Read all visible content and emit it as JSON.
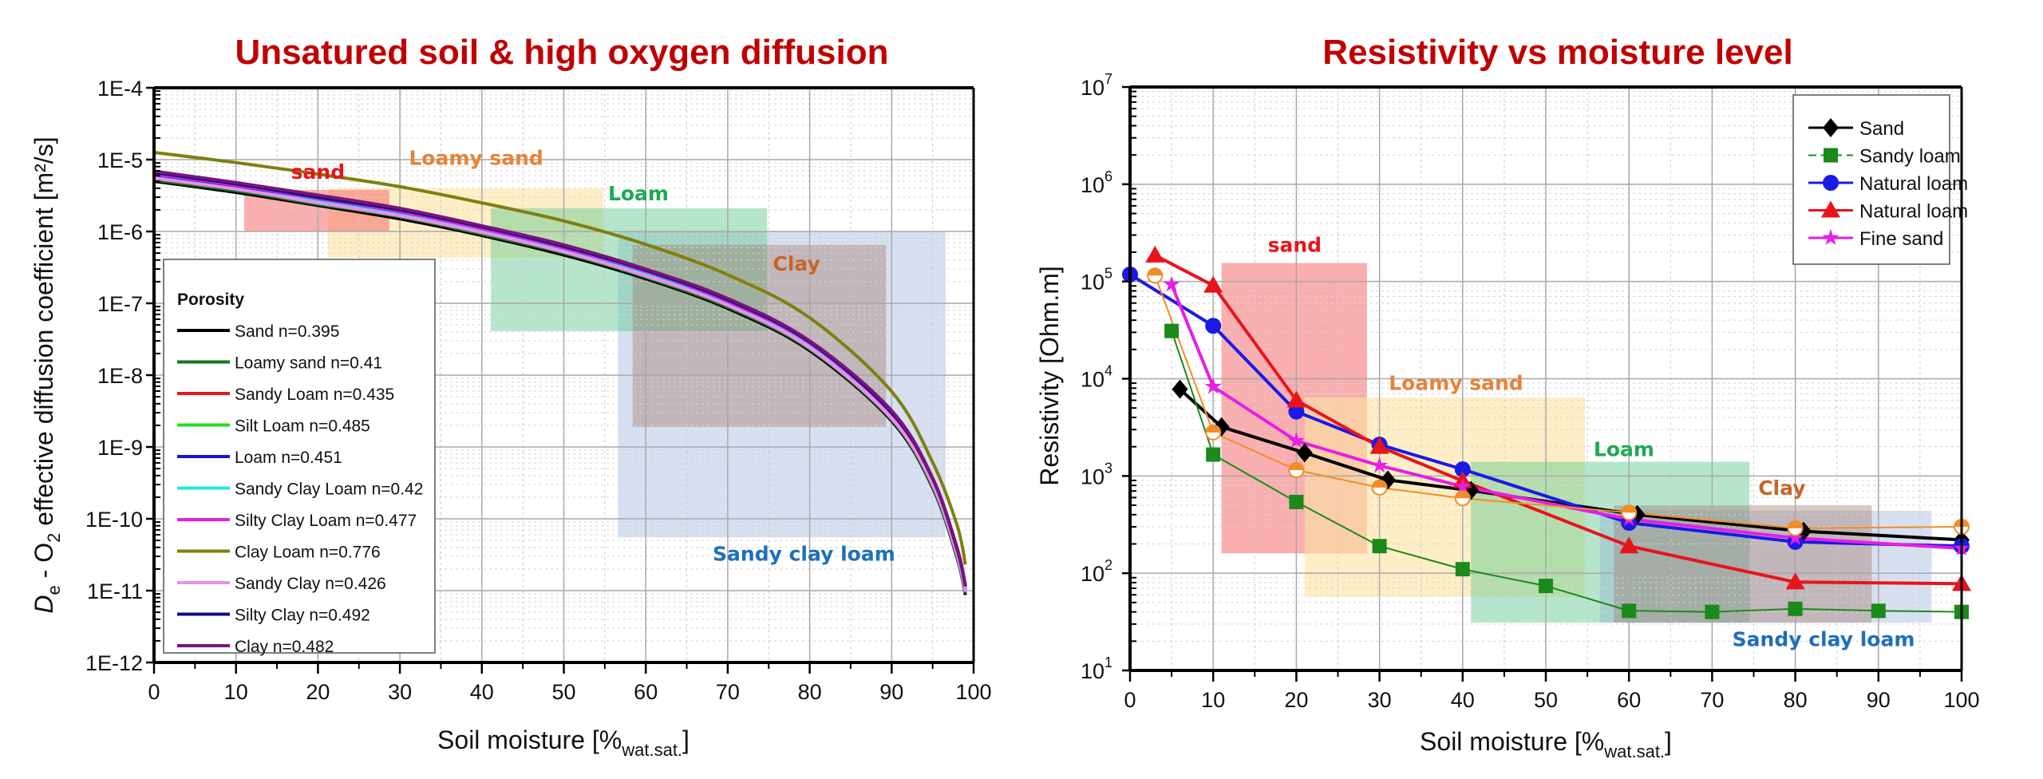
{
  "chart_data": [
    {
      "id": "left",
      "type": "line",
      "title": "Unsatured soil & high oxygen diffusion",
      "xlabel": "Soil moisture [%",
      "xlabel_sub": "wat.sat.",
      "xlabel_end": "]",
      "ylabel_main": "D",
      "ylabel_sub_e": "e",
      "ylabel_rest1": " - O",
      "ylabel_sub_2": "2",
      "ylabel_rest2": " effective diffusion coefficient [m²/s]",
      "xlim": [
        0,
        100
      ],
      "ylim": [
        1e-12,
        0.0001
      ],
      "yscale": "log",
      "grid": true,
      "xticks": [
        0,
        10,
        20,
        30,
        40,
        50,
        60,
        70,
        80,
        90,
        100
      ],
      "yticks": [
        {
          "value": 0.0001,
          "label": "1E-4"
        },
        {
          "value": 1e-05,
          "label": "1E-5"
        },
        {
          "value": 1e-06,
          "label": "1E-6"
        },
        {
          "value": 1e-07,
          "label": "1E-7"
        },
        {
          "value": 1e-08,
          "label": "1E-8"
        },
        {
          "value": 1e-09,
          "label": "1E-9"
        },
        {
          "value": 1e-10,
          "label": "1E-10"
        },
        {
          "value": 1e-11,
          "label": "1E-11"
        },
        {
          "value": 1e-12,
          "label": "1E-12"
        }
      ],
      "legend_title": "Porosity",
      "legend_position": "bottom-left",
      "x": [
        0,
        10,
        20,
        30,
        40,
        50,
        60,
        70,
        80,
        90,
        95,
        98,
        99
      ],
      "series": [
        {
          "name": "Sand n=0.395",
          "color": "#000000",
          "values": [
            5e-06,
            3.5e-06,
            2.3e-06,
            1.5e-06,
            8.8e-07,
            4.7e-07,
            2.2e-07,
            8.5e-08,
            2.2e-08,
            2.3e-09,
            2.7e-10,
            2.8e-11,
            8.7e-12
          ]
        },
        {
          "name": "Loamy sand n=0.41",
          "color": "#0f7a1a",
          "values": [
            5.2e-06,
            3.7e-06,
            2.4e-06,
            1.6e-06,
            9.2e-07,
            5e-07,
            2.3e-07,
            8.9e-08,
            2.3e-08,
            2.4e-09,
            2.8e-10,
            2.9e-11,
            9.1e-12
          ]
        },
        {
          "name": "Sandy Loam n=0.435",
          "color": "#e8141b",
          "values": [
            5.9e-06,
            4.1e-06,
            2.7e-06,
            1.8e-06,
            1e-06,
            5.5e-07,
            2.6e-07,
            9.9e-08,
            2.6e-08,
            2.7e-09,
            3.2e-10,
            3.3e-11,
            1e-11
          ]
        },
        {
          "name": "Silt Loam n=0.485",
          "color": "#22e022",
          "values": [
            5.7e-06,
            4e-06,
            2.6e-06,
            1.7e-06,
            1e-06,
            5.4e-07,
            2.5e-07,
            9.8e-08,
            2.5e-08,
            2.6e-09,
            3.1e-10,
            3.2e-11,
            1e-11
          ]
        },
        {
          "name": "Loam n=0.451",
          "color": "#1212d8",
          "values": [
            6e-06,
            4.2e-06,
            2.8e-06,
            1.8e-06,
            1.06e-06,
            5.6e-07,
            2.6e-07,
            1e-07,
            2.6e-08,
            2.8e-09,
            3.2e-10,
            3.4e-11,
            1.04e-11
          ]
        },
        {
          "name": "Sandy Clay Loam n=0.42",
          "color": "#22e6e6",
          "values": [
            5.6e-06,
            3.9e-06,
            2.6e-06,
            1.7e-06,
            9.9e-07,
            5.3e-07,
            2.5e-07,
            9.5e-08,
            2.5e-08,
            2.6e-09,
            3e-10,
            3.1e-11,
            9.7e-12
          ]
        },
        {
          "name": "Silty Clay Loam n=0.477",
          "color": "#e61ee6",
          "values": [
            6.3e-06,
            4.4e-06,
            2.9e-06,
            1.9e-06,
            1.1e-06,
            5.9e-07,
            2.8e-07,
            1.07e-07,
            2.8e-08,
            2.9e-09,
            3.4e-10,
            3.5e-11,
            1.1e-11
          ]
        },
        {
          "name": "Clay Loam n=0.776",
          "color": "#7f7f0f",
          "values": [
            1.26e-05,
            9.1e-06,
            6.3e-06,
            4.2e-06,
            2.5e-06,
            1.4e-06,
            6.6e-07,
            2.5e-07,
            6.3e-08,
            5.9e-09,
            6.1e-10,
            8e-11,
            2.3e-11
          ]
        },
        {
          "name": "Sandy Clay n=0.426",
          "color": "#f08ce8",
          "values": [
            5.5e-06,
            3.9e-06,
            2.5e-06,
            1.65e-06,
            9.7e-07,
            5.2e-07,
            2.4e-07,
            9.4e-08,
            2.4e-08,
            2.5e-09,
            3e-10,
            3.1e-11,
            9.6e-12
          ]
        },
        {
          "name": "Silty Clay n=0.492",
          "color": "#101078",
          "values": [
            6.6e-06,
            4.6e-06,
            3e-06,
            2e-06,
            1.16e-06,
            6.2e-07,
            2.9e-07,
            1.12e-07,
            2.9e-08,
            3e-09,
            3.6e-10,
            3.7e-11,
            1.15e-11
          ]
        },
        {
          "name": "Clay n=0.482",
          "color": "#7a147a",
          "values": [
            6.9e-06,
            4.8e-06,
            3.2e-06,
            2.1e-06,
            1.2e-06,
            6.5e-07,
            3e-07,
            1.17e-07,
            3e-08,
            3.2e-09,
            3.7e-10,
            3.9e-11,
            1.2e-11
          ]
        }
      ],
      "regions": [
        {
          "name": "Sandy clay loam",
          "x": [
            56.6,
            96.6
          ],
          "y": [
            5.5e-11,
            1e-06
          ],
          "fill": "#8ca5d7",
          "opacity": 0.35,
          "label_color": "#1f6fb8",
          "label_at": [
            79.3,
            3.3e-11
          ]
        },
        {
          "name": "Loamy sand",
          "x": [
            21.2,
            54.8
          ],
          "y": [
            4.3e-07,
            4e-06
          ],
          "fill": "#fbe3a0",
          "opacity": 0.6,
          "label_color": "#e8823a",
          "label_at": [
            39.3,
            1.07e-05
          ]
        },
        {
          "name": "Loam",
          "x": [
            41.1,
            74.8
          ],
          "y": [
            4.1e-08,
            2.1e-06
          ],
          "fill": "#5ac88c",
          "opacity": 0.45,
          "label_color": "#1daa55",
          "label_at": [
            59.1,
            3.4e-06
          ]
        },
        {
          "name": "Clay",
          "x": [
            58.4,
            89.3
          ],
          "y": [
            1.9e-09,
            6.5e-07
          ],
          "fill": "#a07868",
          "opacity": 0.4,
          "label_color": "#c86428",
          "label_at": [
            78.4,
            3.6e-07
          ]
        },
        {
          "name": "sand",
          "x": [
            11.0,
            28.7
          ],
          "y": [
            1e-06,
            3.8e-06
          ],
          "fill": "#f46e6e",
          "opacity": 0.55,
          "label_color": "#e8141b",
          "label_at": [
            20.0,
            6.8e-06
          ]
        }
      ]
    },
    {
      "id": "right",
      "type": "line",
      "title": "Resistivity vs moisture level",
      "xlabel": "Soil moisture [%",
      "xlabel_sub": "wat.sat.",
      "xlabel_end": "]",
      "ylabel": "Resistivity [Ohm.m]",
      "xlim": [
        0,
        100
      ],
      "ylim": [
        10,
        10000000
      ],
      "yscale": "log",
      "grid": true,
      "xticks": [
        0,
        10,
        20,
        30,
        40,
        50,
        60,
        70,
        80,
        90,
        100
      ],
      "yticks": [
        {
          "value": 10000000,
          "base": "10",
          "exp": "7"
        },
        {
          "value": 1000000,
          "base": "10",
          "exp": "6"
        },
        {
          "value": 100000,
          "base": "10",
          "exp": "5"
        },
        {
          "value": 10000,
          "base": "10",
          "exp": "4"
        },
        {
          "value": 1000,
          "base": "10",
          "exp": "3"
        },
        {
          "value": 100,
          "base": "10",
          "exp": "2"
        },
        {
          "value": 10,
          "base": "10",
          "exp": "1"
        }
      ],
      "legend_position": "top-right",
      "series": [
        {
          "name": "Sand",
          "color": "#000000",
          "marker": "diamond",
          "in_legend": true,
          "line_width": 4,
          "x": [
            6,
            11,
            21,
            31,
            41,
            61,
            81,
            100
          ],
          "y": [
            7800,
            3200,
            1730,
            910,
            710,
            400,
            270,
            220
          ]
        },
        {
          "name": "Sandy loam",
          "color": "#1a8a1a",
          "marker": "square",
          "in_legend": true,
          "line_width": 2,
          "x": [
            5,
            10,
            20,
            30,
            40,
            50,
            60,
            70,
            80,
            90,
            100
          ],
          "y": [
            31000,
            1660,
            540,
            190,
            110,
            74,
            41,
            40,
            43,
            41,
            40
          ]
        },
        {
          "name": "Natural loam",
          "color": "#1a1ae6",
          "marker": "circle",
          "in_legend": true,
          "line_width": 4,
          "x": [
            0,
            10,
            20,
            30,
            40,
            60,
            80,
            100
          ],
          "y": [
            118000,
            35000,
            4600,
            2100,
            1170,
            330,
            210,
            190
          ]
        },
        {
          "name": "Natural loam",
          "color": "#e8141b",
          "marker": "triangle",
          "in_legend": true,
          "line_width": 4,
          "x": [
            3,
            10,
            20,
            30,
            40,
            60,
            80,
            100
          ],
          "y": [
            186000,
            91000,
            6000,
            2000,
            890,
            190,
            81,
            78
          ]
        },
        {
          "name": "Fine sand",
          "color": "#e61ee6",
          "marker": "star",
          "in_legend": true,
          "line_width": 4,
          "x": [
            5,
            10,
            20,
            30,
            40,
            60,
            80,
            100
          ],
          "y": [
            93000,
            8300,
            2300,
            1280,
            780,
            360,
            230,
            180
          ]
        },
        {
          "name": "",
          "color": "#f28c28",
          "marker": "half-circle",
          "in_legend": false,
          "line_width": 2,
          "x": [
            3,
            10,
            20,
            30,
            40,
            60,
            80,
            100
          ],
          "y": [
            115000,
            2800,
            1150,
            760,
            590,
            420,
            290,
            300
          ]
        }
      ],
      "regions": [
        {
          "name": "sand",
          "x": [
            11.0,
            28.5
          ],
          "y": [
            160,
            155000
          ],
          "fill": "#f46e6e",
          "opacity": 0.55,
          "label_color": "#e8141b",
          "label_at": [
            19.8,
            240000
          ]
        },
        {
          "name": "Loamy sand",
          "x": [
            21.0,
            54.7
          ],
          "y": [
            57,
            6400
          ],
          "fill": "#fbe3a0",
          "opacity": 0.6,
          "label_color": "#e8823a",
          "label_at": [
            39.2,
            9100
          ]
        },
        {
          "name": "Loam",
          "x": [
            41.0,
            74.5
          ],
          "y": [
            31,
            1400
          ],
          "fill": "#5ac88c",
          "opacity": 0.45,
          "label_color": "#1daa55",
          "label_at": [
            59.4,
            1900
          ]
        },
        {
          "name": "Sandy clay loam",
          "x": [
            56.5,
            96.4
          ],
          "y": [
            31,
            440
          ],
          "fill": "#8ca5d7",
          "opacity": 0.35,
          "label_color": "#1f6fb8",
          "label_at": [
            83.4,
            21
          ]
        },
        {
          "name": "Clay",
          "x": [
            58.2,
            89.2
          ],
          "y": [
            31,
            500
          ],
          "fill": "#a07868",
          "opacity": 0.4,
          "label_color": "#c86428",
          "label_at": [
            78.4,
            760
          ]
        }
      ]
    }
  ]
}
